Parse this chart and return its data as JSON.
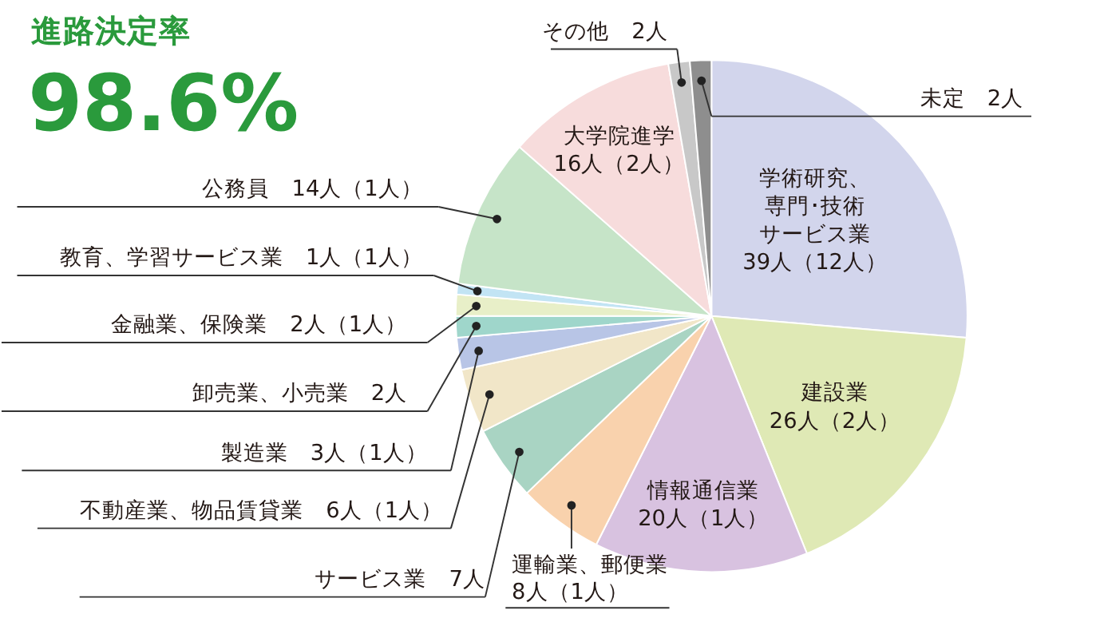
{
  "chart_data": {
    "type": "pie",
    "title": "進路決定率",
    "subtitle": "98.6%",
    "categories": [
      "学術研究、専門･技術サービス業",
      "建設業",
      "情報通信業",
      "運輸業、郵便業",
      "サービス業",
      "不動産業、物品賃貸業",
      "製造業",
      "卸売業、小売業",
      "金融業、保険業",
      "教育、学習サービス業",
      "公務員",
      "大学院進学",
      "その他",
      "未定"
    ],
    "values": [
      39,
      26,
      20,
      8,
      7,
      6,
      3,
      2,
      2,
      1,
      14,
      16,
      2,
      2
    ],
    "colors": [
      "#d2d5ec",
      "#dfe9b5",
      "#d8c2e0",
      "#f9d2ad",
      "#a9d4c3",
      "#f1e6c8",
      "#b8c5e6",
      "#9fd6cb",
      "#e8efc8",
      "#c2e4f4",
      "#c6e4c8",
      "#f7dcdc",
      "#c8c8c8",
      "#8e8e8e"
    ],
    "value_labels": [
      "39人（12人）",
      "26人（2人）",
      "20人（1人）",
      "8人（1人）",
      "7人",
      "6人（1人）",
      "3人（1人）",
      "2人",
      "2人（1人）",
      "1人（1人）",
      "14人（1人）",
      "16人（2人）",
      "2人",
      "2人"
    ]
  }
}
